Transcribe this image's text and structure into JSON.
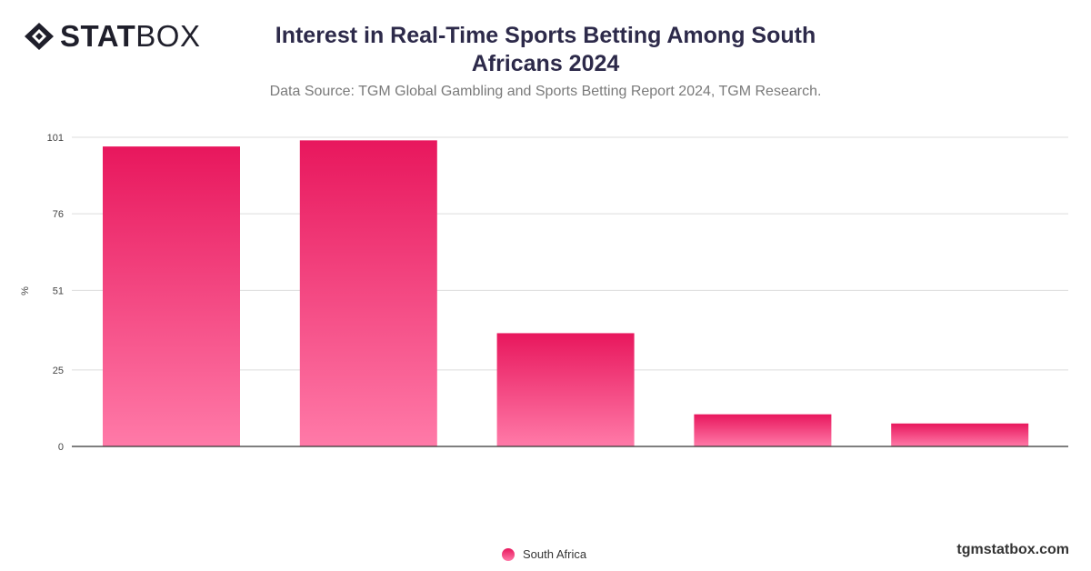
{
  "brand": {
    "logo_bold": "STAT",
    "logo_light": "BOX",
    "logo_mark": "diamond-logo-icon"
  },
  "header": {
    "title": "Interest in Real-Time Sports Betting Among South Africans 2024",
    "subtitle": "Data Source: TGM Global Gambling and Sports Betting Report 2024, TGM Research."
  },
  "footer": {
    "site": "tgmstatbox.com"
  },
  "colors": {
    "bar_top": "#e8175d",
    "bar_bottom": "#ff7aa8",
    "grid": "#dddddd",
    "axis": "#333333"
  },
  "chart_data": {
    "type": "bar",
    "title": "Interest in Real-Time Sports Betting Among South Africans 2024",
    "ylabel": "%",
    "xlabel": "",
    "categories": [
      "",
      "",
      "",
      "",
      ""
    ],
    "ylim": [
      0,
      101
    ],
    "yticks": [
      0,
      25,
      51,
      76,
      101
    ],
    "grid": true,
    "legend_position": "bottom-center",
    "series": [
      {
        "name": "South Africa",
        "values": [
          98,
          100,
          37,
          10.5,
          7.5
        ]
      }
    ]
  }
}
